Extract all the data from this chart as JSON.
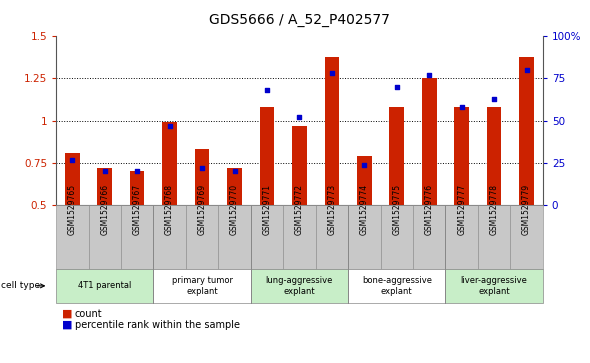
{
  "title": "GDS5666 / A_52_P402577",
  "samples": [
    "GSM1529765",
    "GSM1529766",
    "GSM1529767",
    "GSM1529768",
    "GSM1529769",
    "GSM1529770",
    "GSM1529771",
    "GSM1529772",
    "GSM1529773",
    "GSM1529774",
    "GSM1529775",
    "GSM1529776",
    "GSM1529777",
    "GSM1529778",
    "GSM1529779"
  ],
  "counts": [
    0.81,
    0.72,
    0.7,
    0.99,
    0.83,
    0.72,
    1.08,
    0.97,
    1.38,
    0.79,
    1.08,
    1.25,
    1.08,
    1.08,
    1.38
  ],
  "percentiles": [
    27,
    20,
    20,
    47,
    22,
    20,
    68,
    52,
    78,
    24,
    70,
    77,
    58,
    63,
    80
  ],
  "cell_types": [
    {
      "label": "4T1 parental",
      "start": 0,
      "end": 3,
      "color": "#c8eec8"
    },
    {
      "label": "primary tumor\nexplant",
      "start": 3,
      "end": 6,
      "color": "#ffffff"
    },
    {
      "label": "lung-aggressive\nexplant",
      "start": 6,
      "end": 9,
      "color": "#c8eec8"
    },
    {
      "label": "bone-aggressive\nexplant",
      "start": 9,
      "end": 12,
      "color": "#ffffff"
    },
    {
      "label": "liver-aggressive\nexplant",
      "start": 12,
      "end": 15,
      "color": "#c8eec8"
    }
  ],
  "bar_color": "#cc2200",
  "dot_color": "#0000cc",
  "ylim_left": [
    0.5,
    1.5
  ],
  "ylim_right": [
    0,
    100
  ],
  "yticks_left": [
    0.5,
    0.75,
    1.0,
    1.25,
    1.5
  ],
  "ytick_labels_left": [
    "0.5",
    "0.75",
    "1",
    "1.25",
    "1.5"
  ],
  "yticks_right": [
    0,
    25,
    50,
    75,
    100
  ],
  "ytick_labels_right": [
    "0",
    "25",
    "50",
    "75",
    "100%"
  ],
  "grid_lines": [
    0.75,
    1.0,
    1.25
  ],
  "bar_width": 0.45,
  "sample_box_color": "#c8c8c8",
  "border_color": "#888888",
  "legend_count_label": "count",
  "legend_pct_label": "percentile rank within the sample"
}
